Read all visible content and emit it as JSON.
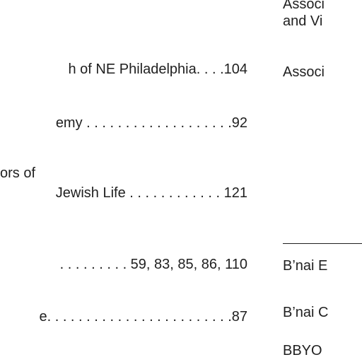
{
  "left_column": {
    "entries": [
      {
        "text": "h of NE Philadelphia. . . .104"
      },
      {
        "text": "emy . . . . . . . . . . . . . . . . . . .92"
      },
      {
        "line1": "ors  of",
        "line2": "Jewish Life . . . . . . . . . . . . 121"
      },
      {
        "text": ". . . . . . . . . 59, 83, 85, 86, 110"
      },
      {
        "text": "e. . . . . . . . . . . . . . . . . . . . . . . .87"
      }
    ]
  },
  "right_column": {
    "entries": [
      {
        "text": "Associ"
      },
      {
        "text": "and Vi"
      },
      {
        "text": "Associ"
      },
      {
        "text": "B’nai E"
      },
      {
        "text": "B’nai C"
      },
      {
        "text": "BBYO"
      }
    ]
  }
}
